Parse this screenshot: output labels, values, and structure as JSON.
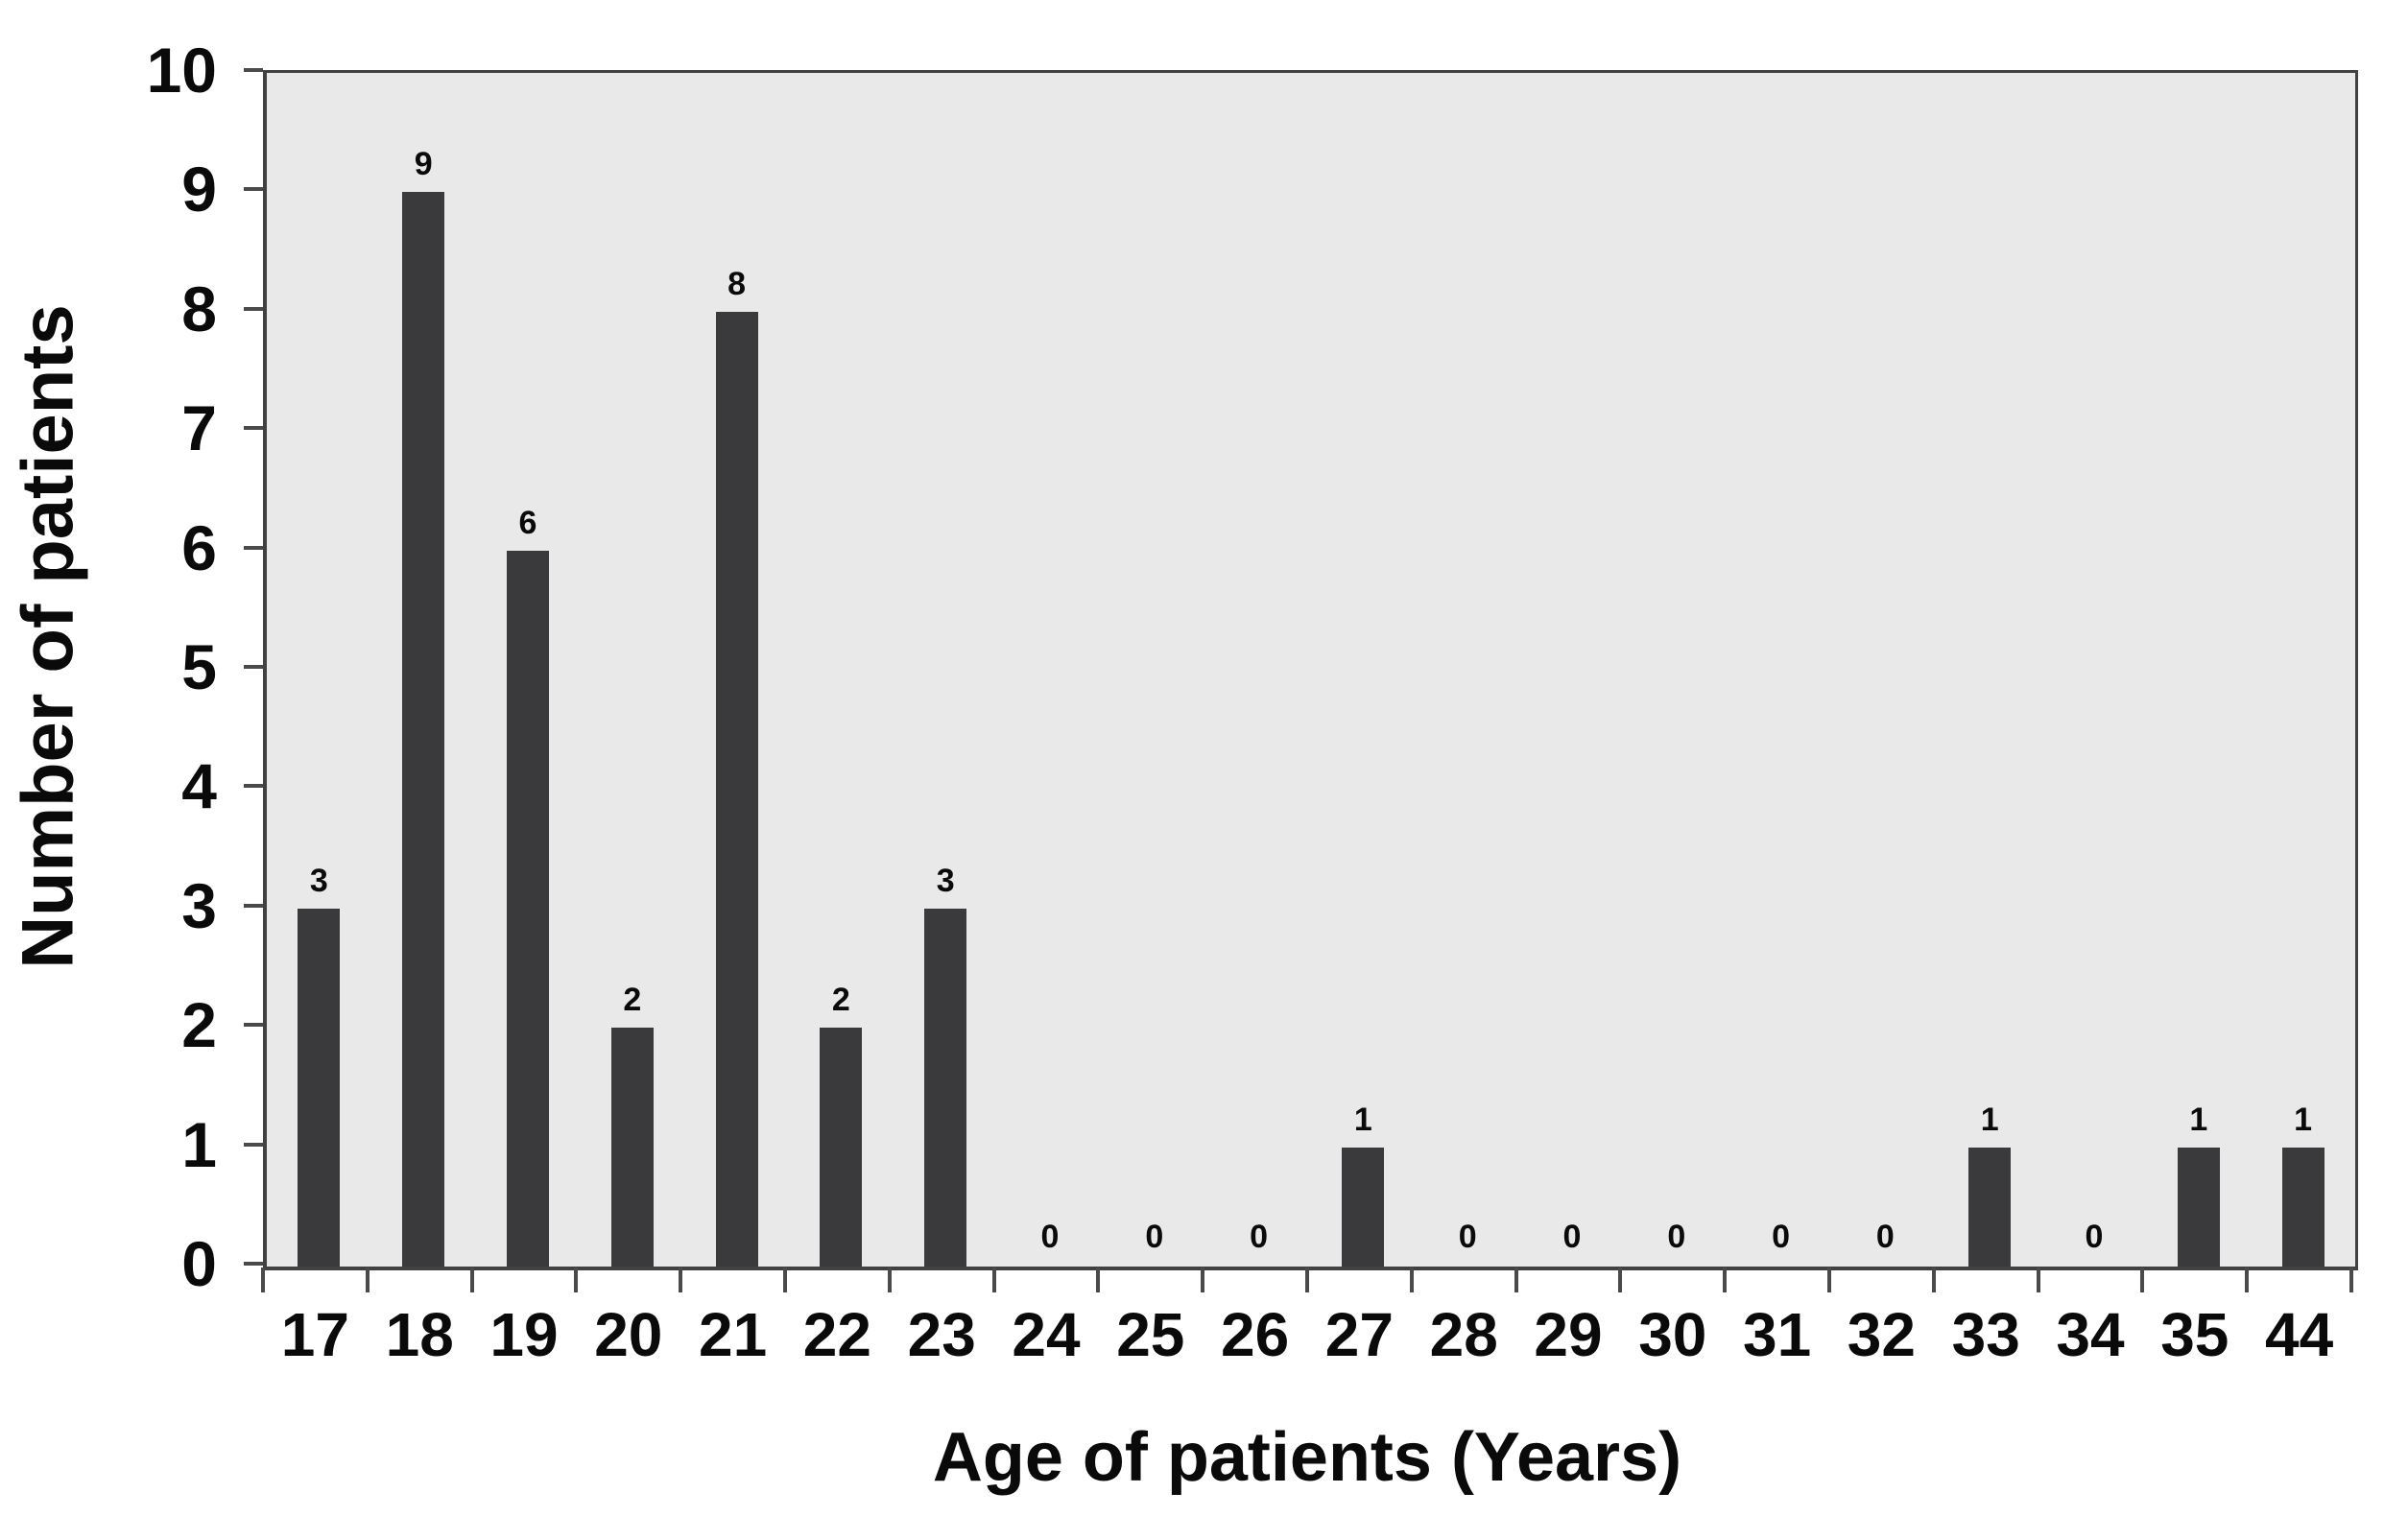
{
  "chart_data": {
    "type": "bar",
    "categories": [
      "17",
      "18",
      "19",
      "20",
      "21",
      "22",
      "23",
      "24",
      "25",
      "26",
      "27",
      "28",
      "29",
      "30",
      "31",
      "32",
      "33",
      "34",
      "35",
      "44"
    ],
    "values": [
      3,
      9,
      6,
      2,
      8,
      2,
      3,
      0,
      0,
      0,
      1,
      0,
      0,
      0,
      0,
      0,
      1,
      0,
      1,
      1
    ],
    "title": "",
    "xlabel": "Age of patients (Years)",
    "ylabel": "Number of patients",
    "ylim": [
      0,
      10
    ],
    "yticks": [
      "0",
      "1",
      "2",
      "3",
      "4",
      "5",
      "6",
      "7",
      "8",
      "9",
      "10"
    ],
    "show_value_labels": true,
    "grid": false,
    "legend": "none",
    "colors": {
      "bar": "#3a3a3c",
      "plot_background": "#e9e9e9",
      "frame": "#414141",
      "tick": "#4a4a4a",
      "text": "#0a0a0a"
    }
  }
}
